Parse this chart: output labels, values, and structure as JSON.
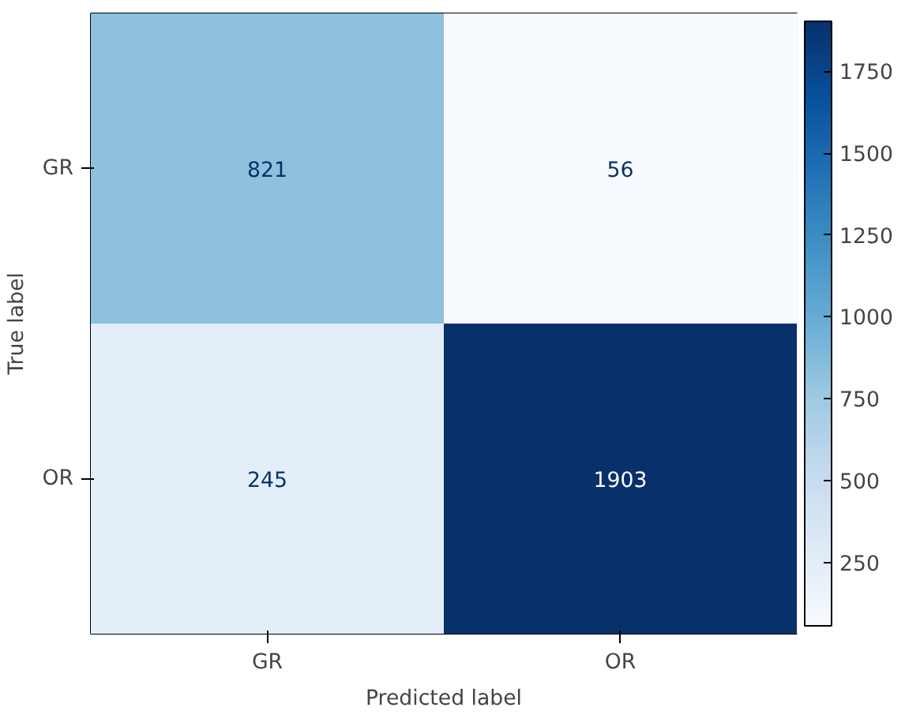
{
  "chart_data": {
    "type": "heatmap",
    "xlabel": "Predicted label",
    "ylabel": "True label",
    "categories": [
      "GR",
      "OR"
    ],
    "y_categories": [
      "GR",
      "OR"
    ],
    "cells": [
      [
        821,
        56
      ],
      [
        245,
        1903
      ]
    ],
    "clim": [
      56,
      1903
    ],
    "cticks": [
      250,
      500,
      750,
      1000,
      1250,
      1500,
      1750
    ],
    "data_labels": true
  }
}
